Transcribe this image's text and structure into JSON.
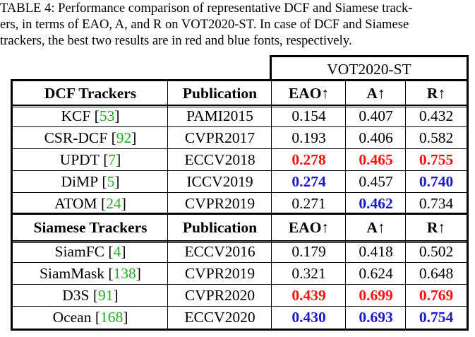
{
  "caption": {
    "lines": [
      "TABLE 4: Performance comparison of representative DCF and Siamese track-",
      "ers, in terms of EAO, A, and R on VOT2020-ST. In case of DCF and Siamese",
      "trackers, the best two results are in red and blue fonts, respectively."
    ]
  },
  "table": {
    "group_header": "VOT2020-ST",
    "sections": [
      {
        "headers": [
          "DCF Trackers",
          "Publication",
          "EAO↑",
          "A↑",
          "R↑"
        ],
        "rows": [
          {
            "name": "KCF",
            "ref": "53",
            "pub": "PAMI2015",
            "eao": "0.154",
            "a": "0.407",
            "r": "0.432",
            "eao_style": "",
            "a_style": "",
            "r_style": ""
          },
          {
            "name": "CSR-DCF",
            "ref": "92",
            "pub": "CVPR2017",
            "eao": "0.193",
            "a": "0.406",
            "r": "0.582",
            "eao_style": "",
            "a_style": "",
            "r_style": ""
          },
          {
            "name": "UPDT",
            "ref": "7",
            "pub": "ECCV2018",
            "eao": "0.278",
            "a": "0.465",
            "r": "0.755",
            "eao_style": "red",
            "a_style": "red",
            "r_style": "red"
          },
          {
            "name": "DiMP",
            "ref": "5",
            "pub": "ICCV2019",
            "eao": "0.274",
            "a": "0.457",
            "r": "0.740",
            "eao_style": "blue",
            "a_style": "",
            "r_style": "blue"
          },
          {
            "name": "ATOM",
            "ref": "24",
            "pub": "CVPR2019",
            "eao": "0.271",
            "a": "0.462",
            "r": "0.734",
            "eao_style": "",
            "a_style": "blue",
            "r_style": ""
          }
        ]
      },
      {
        "headers": [
          "Siamese Trackers",
          "Publication",
          "EAO↑",
          "A↑",
          "R↑"
        ],
        "rows": [
          {
            "name": "SiamFC",
            "ref": "4",
            "pub": "ECCV2016",
            "eao": "0.179",
            "a": "0.418",
            "r": "0.502",
            "eao_style": "",
            "a_style": "",
            "r_style": ""
          },
          {
            "name": "SiamMask",
            "ref": "138",
            "pub": "CVPR2019",
            "eao": "0.321",
            "a": "0.624",
            "r": "0.648",
            "eao_style": "",
            "a_style": "",
            "r_style": ""
          },
          {
            "name": "D3S",
            "ref": "91",
            "pub": "CVPR2020",
            "eao": "0.439",
            "a": "0.699",
            "r": "0.769",
            "eao_style": "red",
            "a_style": "red",
            "r_style": "red"
          },
          {
            "name": "Ocean",
            "ref": "168",
            "pub": "ECCV2020",
            "eao": "0.430",
            "a": "0.693",
            "r": "0.754",
            "eao_style": "blue",
            "a_style": "blue",
            "r_style": "blue"
          }
        ]
      }
    ]
  },
  "colors": {
    "best": "#ff1010",
    "second": "#1a1acc",
    "citation": "#1faa1f"
  }
}
